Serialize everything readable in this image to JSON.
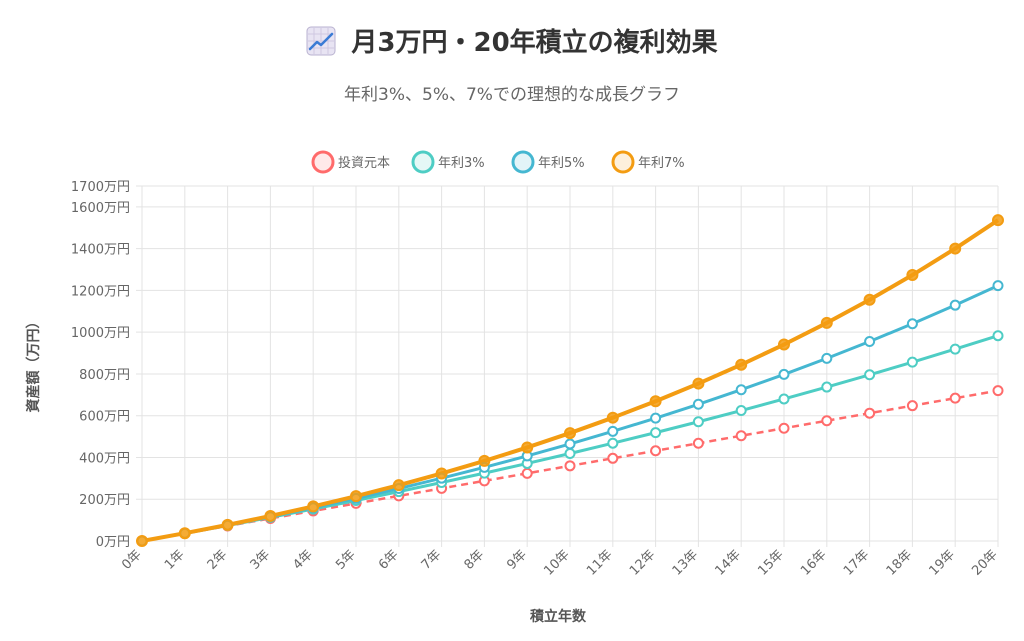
{
  "page": {
    "title": "月3万円・20年積立の複利効果",
    "title_icon": "chart-increasing-icon",
    "subtitle": "年利3%、5%、7%での理想的な成長グラフ"
  },
  "chart_data": {
    "type": "line",
    "xlabel": "積立年数",
    "ylabel": "資産額（万円）",
    "ylim": [
      0,
      1700
    ],
    "yticks": [
      {
        "value": 0,
        "label": "0万円"
      },
      {
        "value": 200,
        "label": "200万円"
      },
      {
        "value": 400,
        "label": "400万円"
      },
      {
        "value": 600,
        "label": "600万円"
      },
      {
        "value": 800,
        "label": "800万円"
      },
      {
        "value": 1000,
        "label": "1000万円"
      },
      {
        "value": 1200,
        "label": "1200万円"
      },
      {
        "value": 1400,
        "label": "1400万円"
      },
      {
        "value": 1600,
        "label": "1600万円"
      },
      {
        "value": 1700,
        "label": "1700万円"
      }
    ],
    "categories": [
      "0年",
      "1年",
      "2年",
      "3年",
      "4年",
      "5年",
      "6年",
      "7年",
      "8年",
      "9年",
      "10年",
      "11年",
      "12年",
      "13年",
      "14年",
      "15年",
      "16年",
      "17年",
      "18年",
      "19年",
      "20年"
    ],
    "grid": true,
    "legend_position": "top",
    "series": [
      {
        "name": "投資元本",
        "color": "#ff6b6b",
        "dashed": true,
        "values": [
          0,
          36,
          72,
          108,
          144,
          180,
          216,
          252,
          288,
          324,
          360,
          396,
          432,
          468,
          504,
          540,
          576,
          612,
          648,
          684,
          720
        ]
      },
      {
        "name": "年利3%",
        "color": "#4ecdc4",
        "dashed": false,
        "values": [
          0,
          36.6,
          74.2,
          113.0,
          153.0,
          194.1,
          236.5,
          280.2,
          325.1,
          371.4,
          419.1,
          468.3,
          518.9,
          571.1,
          624.8,
          680.2,
          737.2,
          796.0,
          856.5,
          918.9,
          983.1
        ]
      },
      {
        "name": "年利5%",
        "color": "#45b7d1",
        "dashed": false,
        "values": [
          0,
          36.9,
          75.7,
          116.4,
          159.2,
          204.0,
          251.2,
          300.8,
          352.7,
          407.4,
          464.7,
          525.0,
          588.2,
          654.7,
          724.4,
          797.7,
          874.6,
          955.4,
          1040.3,
          1129.3,
          1222.8
        ]
      },
      {
        "name": "年利7%",
        "color": "#f39c12",
        "dashed": false,
        "values": [
          0,
          37.3,
          77.2,
          120.0,
          165.7,
          214.8,
          267.3,
          323.4,
          383.6,
          448.0,
          516.8,
          590.5,
          669.4,
          753.9,
          844.2,
          940.9,
          1044.4,
          1155.2,
          1273.6,
          1400.4,
          1536.3
        ]
      }
    ]
  }
}
